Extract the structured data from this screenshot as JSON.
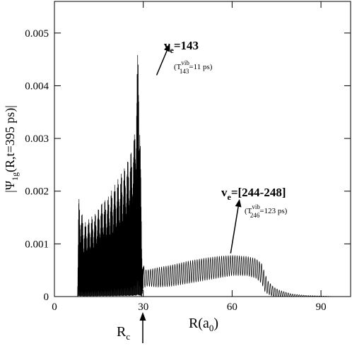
{
  "chart_data": {
    "type": "line",
    "xlabel": {
      "main": "R(a",
      "sub": "0",
      "close": ")"
    },
    "ylabel": {
      "pre": "|Ψ",
      "sub": "1g",
      "post": "(R,t=395 ps)|"
    },
    "xlim": [
      0,
      100
    ],
    "ylim": [
      0,
      0.0056
    ],
    "x_ticks": [
      0,
      30,
      60,
      90
    ],
    "x_tick_labels": [
      "0",
      "30",
      "60",
      "90"
    ],
    "y_ticks": [
      0,
      0.001,
      0.002,
      0.003,
      0.004,
      0.005
    ],
    "y_tick_labels": [
      "0",
      "0.001",
      "0.002",
      "0.003",
      "0.004",
      "0.005"
    ],
    "grid": false,
    "series": [
      {
        "color": "#000000",
        "envelope": {
          "x": [
            7.8,
            8.2,
            10,
            12,
            14,
            16,
            18,
            20,
            22,
            24,
            26,
            27,
            28,
            28.5,
            29,
            29.5,
            30,
            31,
            35,
            40,
            45,
            50,
            55,
            60,
            65,
            68,
            70,
            71,
            72,
            74,
            76,
            80,
            85,
            90,
            95,
            98
          ],
          "upper": [
            0.0,
            0.0019,
            0.0014,
            0.0015,
            0.0016,
            0.0018,
            0.0019,
            0.0021,
            0.0023,
            0.0025,
            0.0028,
            0.0031,
            0.0045,
            0.0052,
            0.003,
            0.001,
            0.0006,
            0.0005,
            0.00055,
            0.0006,
            0.00067,
            0.00072,
            0.00076,
            0.00078,
            0.00076,
            0.00072,
            0.00062,
            0.00045,
            0.0003,
            0.00018,
            0.00012,
            5e-05,
            2e-05,
            1e-05,
            0.0,
            0.0
          ],
          "lower": [
            0.0,
            0.0,
            0.0,
            0.0,
            0.0,
            0.0,
            0.0,
            0.0,
            0.0,
            0.0,
            0.0,
            0.0,
            0.0,
            0.0,
            0.0,
            0.0,
            0.00015,
            0.0002,
            0.00018,
            0.0002,
            0.00025,
            0.0003,
            0.00035,
            0.0004,
            0.0004,
            0.00035,
            0.00025,
            0.0001,
            5e-05,
            0.0,
            0.0,
            0.0,
            0.0,
            0.0,
            0.0,
            0.0
          ]
        }
      }
    ],
    "annotations": [
      {
        "id": "v143",
        "label_main": "v",
        "label_sub": "e",
        "label_rest": "=143",
        "note_open": "(T",
        "note_sup": "vib",
        "note_sub": "143",
        "note_close": "=11 ps)",
        "arrow_from": [
          34.5,
          0.0042
        ],
        "arrow_to": [
          39,
          0.0048
        ]
      },
      {
        "id": "v244",
        "label_main": "v",
        "label_sub": "e",
        "label_rest": "=[244-248]",
        "note_open": "(T",
        "note_sup": "vib",
        "note_sub": "246",
        "note_close": "=123 ps)",
        "arrow_from": [
          59.5,
          0.00082
        ],
        "arrow_to": [
          62.5,
          0.00185
        ]
      }
    ],
    "marker": {
      "label_main": "R",
      "label_sub": "c",
      "x": 30
    }
  }
}
